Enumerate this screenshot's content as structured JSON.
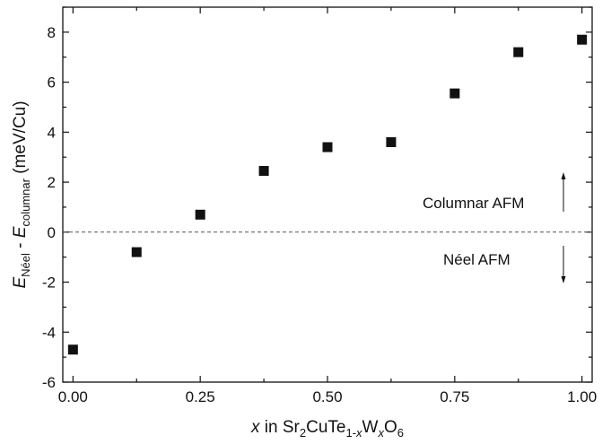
{
  "chart_data": {
    "type": "scatter",
    "x": [
      0.0,
      0.125,
      0.25,
      0.375,
      0.5,
      0.625,
      0.75,
      0.875,
      1.0
    ],
    "y": [
      -4.7,
      -0.8,
      0.7,
      2.45,
      3.4,
      3.6,
      5.55,
      7.2,
      7.7
    ],
    "xlim": [
      -0.02,
      1.02
    ],
    "ylim": [
      -6,
      9
    ],
    "xticks": [
      "0.00",
      "0.25",
      "0.50",
      "0.75",
      "1.00"
    ],
    "yticks": [
      "-6",
      "-4",
      "-2",
      "0",
      "2",
      "4",
      "6",
      "8"
    ],
    "xlabel": {
      "x_italic": "x",
      "text_in": " in Sr",
      "sub_2": "2",
      "text_cute": "CuTe",
      "sub_1x": "1-",
      "sub_x_italic": "x",
      "text_w": "W",
      "sub_x2_italic": "x",
      "text_o": "O",
      "sub_6": "6"
    },
    "ylabel": {
      "e1": "E",
      "sub_neel": "Néel",
      "dash": " - ",
      "e2": "E",
      "sub_columnar": "columnar",
      "units": " (meV/Cu)"
    },
    "annotations": {
      "columnar": "Columnar AFM",
      "neel": "Néel AFM"
    },
    "reference_line_y": 0,
    "marker": "square",
    "marker_color": "#111111",
    "grid": false
  }
}
